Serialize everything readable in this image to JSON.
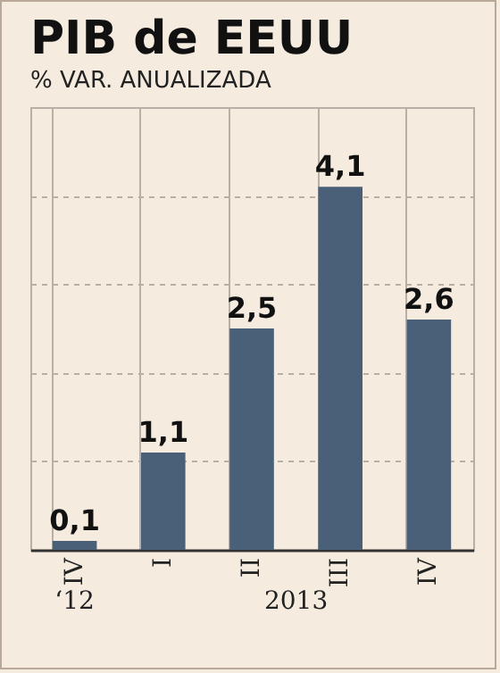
{
  "chart_data": {
    "type": "bar",
    "title": "PIB de EEUU",
    "subtitle": "% VAR. ANUALIZADA",
    "categories": [
      "IV",
      "I",
      "II",
      "III",
      "IV"
    ],
    "values": [
      0.1,
      1.1,
      2.5,
      4.1,
      2.6
    ],
    "value_labels": [
      "0,1",
      "1,1",
      "2,5",
      "4,1",
      "2,6"
    ],
    "color": "#4a6078",
    "ylim": [
      0,
      5
    ],
    "yticks": [
      {
        "value": 0,
        "label": null
      },
      {
        "value": 1,
        "label": null
      },
      {
        "value": 2,
        "label": null
      },
      {
        "value": 3,
        "label": null
      },
      {
        "value": 4,
        "label": null
      },
      {
        "value": 5,
        "label": null
      }
    ],
    "grid": true,
    "tick_labels": "x",
    "annotations": [
      "‘12",
      "2013"
    ]
  }
}
